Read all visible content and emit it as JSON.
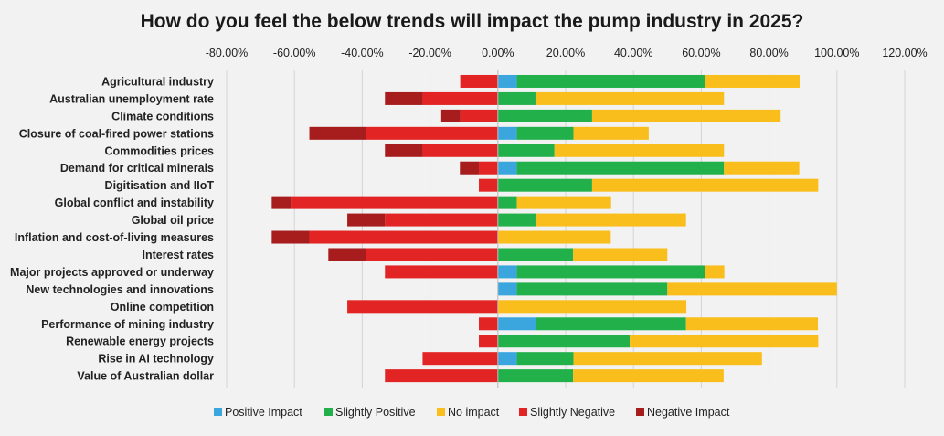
{
  "chart_data": {
    "type": "bar",
    "orientation": "horizontal",
    "stacked": "diverging",
    "title": "How do you feel the below trends will impact the pump industry in 2025?",
    "xlim": [
      -0.8,
      1.2
    ],
    "x_ticks": [
      -0.8,
      -0.6,
      -0.4,
      -0.2,
      0,
      0.2,
      0.4,
      0.6,
      0.8,
      1.0,
      1.2
    ],
    "x_tick_labels": [
      "-80.00%",
      "-60.00%",
      "-40.00%",
      "-20.00%",
      "0.00%",
      "20.00%",
      "40.00%",
      "60.00%",
      "80.00%",
      "100.00%",
      "120.00%"
    ],
    "grid": "vertical",
    "legend_position": "bottom",
    "categories": [
      "Agricultural industry",
      "Australian unemployment rate",
      "Climate conditions",
      "Closure of coal-fired power stations",
      "Commodities prices",
      "Demand for critical minerals",
      "Digitisation and IIoT",
      "Global conflict and instability",
      "Global oil price",
      "Inflation and cost-of-living measures",
      "Interest rates",
      "Major projects approved or underway",
      "New technologies and innovations",
      "Online competition",
      "Performance of mining industry",
      "Renewable energy projects",
      "Rise in AI technology",
      "Value of Australian dollar"
    ],
    "series": [
      {
        "name": "Positive Impact",
        "color": "#3aa6dd",
        "side": "positive",
        "values": [
          0.056,
          0,
          0,
          0.056,
          0,
          0.056,
          0,
          0,
          0,
          0,
          0,
          0.056,
          0.056,
          0,
          0.111,
          0,
          0.056,
          0
        ]
      },
      {
        "name": "Slightly Positive",
        "color": "#22b04b",
        "side": "positive",
        "values": [
          0.556,
          0.111,
          0.278,
          0.167,
          0.167,
          0.611,
          0.278,
          0.056,
          0.111,
          0,
          0.222,
          0.556,
          0.444,
          0,
          0.444,
          0.389,
          0.167,
          0.222
        ]
      },
      {
        "name": "No impact",
        "color": "#f9be1c",
        "side": "positive",
        "values": [
          0.278,
          0.556,
          0.556,
          0.222,
          0.5,
          0.222,
          0.667,
          0.278,
          0.444,
          0.333,
          0.278,
          0.056,
          0.5,
          0.556,
          0.389,
          0.556,
          0.556,
          0.444
        ]
      },
      {
        "name": "Slightly Negative",
        "color": "#e32424",
        "side": "negative",
        "values": [
          -0.111,
          -0.222,
          -0.111,
          -0.389,
          -0.222,
          -0.056,
          -0.056,
          -0.611,
          -0.333,
          -0.556,
          -0.389,
          -0.333,
          0,
          -0.444,
          -0.056,
          -0.056,
          -0.222,
          -0.333
        ]
      },
      {
        "name": "Negative Impact",
        "color": "#a71c1c",
        "side": "negative",
        "values": [
          0,
          -0.111,
          -0.056,
          -0.167,
          -0.111,
          -0.056,
          0,
          -0.056,
          -0.111,
          -0.111,
          -0.111,
          0,
          0,
          0,
          0,
          0,
          0,
          0
        ]
      }
    ]
  }
}
